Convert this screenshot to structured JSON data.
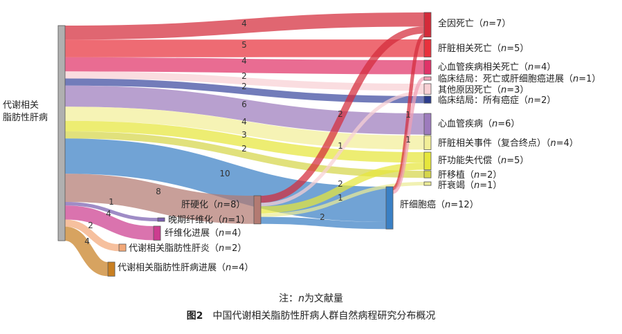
{
  "source": {
    "id": "src",
    "label_lines": [
      "代谢相关",
      "脂肪性肝病"
    ],
    "color": "#b0b0b0"
  },
  "intermediates": [
    {
      "id": "cir",
      "label": "肝硬化（",
      "n": "n",
      "rest": "=8）",
      "color": "#b37a72"
    },
    {
      "id": "hcc",
      "label": "肝细胞癌（",
      "n": "n",
      "rest": "=12）",
      "color": "#3a80c5"
    },
    {
      "id": "lf",
      "label": "晚期纤维化（",
      "n": "n",
      "rest": "=1）",
      "color": "#7a5fb0"
    },
    {
      "id": "fp",
      "label": "纤维化进展（",
      "n": "n",
      "rest": "=4）",
      "color": "#cc3d8f"
    },
    {
      "id": "mash",
      "label": "代谢相关脂肪性肝炎（",
      "n": "n",
      "rest": "=2）",
      "color": "#f2a878"
    },
    {
      "id": "mprog",
      "label": "代谢相关脂肪性肝病进展（",
      "n": "n",
      "rest": "=4）",
      "color": "#c87f22"
    }
  ],
  "outcomes": [
    {
      "id": "acm",
      "label": "全因死亡（",
      "n": "n",
      "rest": "=7）",
      "color": "#d42b3a"
    },
    {
      "id": "ldd",
      "label": "肝脏相关死亡（",
      "n": "n",
      "rest": "=5）",
      "color": "#e8323d"
    },
    {
      "id": "cvd",
      "label": "心血管疾病相关死亡（",
      "n": "n",
      "rest": "=4）",
      "color": "#e03368"
    },
    {
      "id": "cl1",
      "label": "临床结局：死亡或肝细胞癌进展（",
      "n": "n",
      "rest": "=1）",
      "color": "#f0a0b4"
    },
    {
      "id": "oth",
      "label": "其他原因死亡（",
      "n": "n",
      "rest": "=3）",
      "color": "#f8d0d4"
    },
    {
      "id": "cl2",
      "label": "临床结局：所有癌症（",
      "n": "n",
      "rest": "=2）",
      "color": "#2c3c8c"
    },
    {
      "id": "cv",
      "label": "心血管疾病（",
      "n": "n",
      "rest": "=6）",
      "color": "#9d7bbd"
    },
    {
      "id": "lre",
      "label": "肝脏相关事件（复合终点）（",
      "n": "n",
      "rest": "=4）",
      "color": "#f2ee98"
    },
    {
      "id": "dec",
      "label": "肝功能失代偿（",
      "n": "n",
      "rest": "=5）",
      "color": "#e6e63c"
    },
    {
      "id": "tx",
      "label": "肝移植（",
      "n": "n",
      "rest": "=2）",
      "color": "#d6d64a"
    },
    {
      "id": "fail",
      "label": "肝衰竭（",
      "n": "n",
      "rest": "=1）",
      "color": "#ecec96"
    }
  ],
  "flows": [
    {
      "from": "src",
      "to": "acm",
      "value": 4,
      "label": "4"
    },
    {
      "from": "src",
      "to": "ldd",
      "value": 5,
      "label": "5"
    },
    {
      "from": "src",
      "to": "cvd",
      "value": 4,
      "label": "4"
    },
    {
      "from": "src",
      "to": "oth",
      "value": 2,
      "label": "2"
    },
    {
      "from": "src",
      "to": "cl2",
      "value": 2,
      "label": "2"
    },
    {
      "from": "src",
      "to": "cv",
      "value": 6,
      "label": "6"
    },
    {
      "from": "src",
      "to": "lre",
      "value": 4,
      "label": "4"
    },
    {
      "from": "src",
      "to": "dec",
      "value": 3,
      "label": "3"
    },
    {
      "from": "src",
      "to": "tx",
      "value": 2,
      "label": "2"
    },
    {
      "from": "src",
      "to": "hcc",
      "value": 10,
      "label": "10"
    },
    {
      "from": "src",
      "to": "cir",
      "value": 8,
      "label": "8"
    },
    {
      "from": "src",
      "to": "lf",
      "value": 1,
      "label": "1"
    },
    {
      "from": "src",
      "to": "fp",
      "value": 4,
      "label": "4"
    },
    {
      "from": "src",
      "to": "mash",
      "value": 2,
      "label": "2"
    },
    {
      "from": "src",
      "to": "mprog",
      "value": 4,
      "label": "4"
    },
    {
      "from": "cir",
      "to": "acm",
      "value": 2,
      "label": "2"
    },
    {
      "from": "cir",
      "to": "oth",
      "value": 1,
      "label": "1"
    },
    {
      "from": "cir",
      "to": "dec",
      "value": 2,
      "label": "2"
    },
    {
      "from": "cir",
      "to": "fail",
      "value": 1,
      "label": "1"
    },
    {
      "from": "cir",
      "to": "hcc",
      "value": 2,
      "label": "2"
    },
    {
      "from": "hcc",
      "to": "acm",
      "value": 1,
      "label": "1"
    },
    {
      "from": "hcc",
      "to": "cl1",
      "value": 1,
      "label": "1"
    }
  ],
  "note": {
    "prefix": "注：",
    "italic": "n",
    "suffix": "为文献量"
  },
  "caption": {
    "fig": "图2",
    "text": "中国代谢相关脂肪性肝病人群自然病程研究分布概况"
  }
}
